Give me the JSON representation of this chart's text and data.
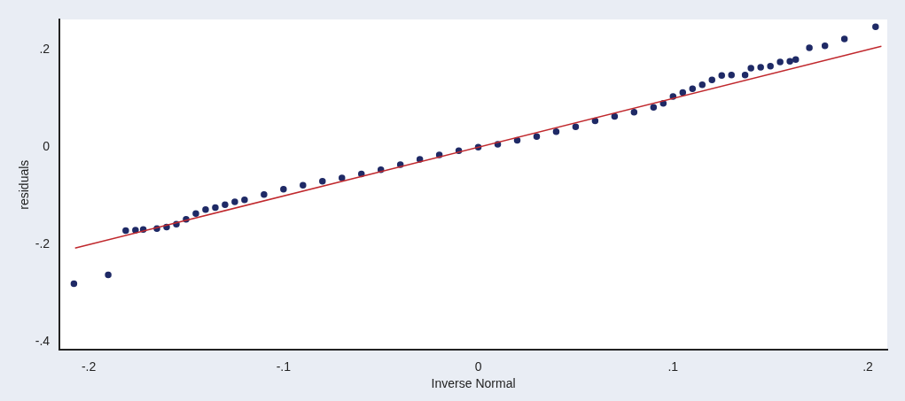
{
  "chart_data": {
    "type": "scatter",
    "xlabel": "Inverse Normal",
    "ylabel": "residuals",
    "xlim": [
      -0.215,
      0.21
    ],
    "ylim": [
      -0.416,
      0.262
    ],
    "xticks": [
      {
        "value": -0.2,
        "label": "-.2"
      },
      {
        "value": -0.1,
        "label": "-.1"
      },
      {
        "value": 0,
        "label": "0"
      },
      {
        "value": 0.1,
        "label": ".1"
      },
      {
        "value": 0.2,
        "label": ".2"
      }
    ],
    "yticks": [
      {
        "value": -0.4,
        "label": "-.4"
      },
      {
        "value": -0.2,
        "label": "-.2"
      },
      {
        "value": 0,
        "label": "0"
      },
      {
        "value": 0.2,
        "label": ".2"
      }
    ],
    "grid": false,
    "legend": false,
    "marker": "circle",
    "series": [
      {
        "type": "scatter",
        "color": "#1f2a66",
        "x": [
          -0.2076,
          -0.19,
          -0.181,
          -0.176,
          -0.172,
          -0.165,
          -0.16,
          -0.155,
          -0.15,
          -0.145,
          -0.14,
          -0.135,
          -0.13,
          -0.125,
          -0.12,
          -0.11,
          -0.1,
          -0.09,
          -0.08,
          -0.07,
          -0.06,
          -0.05,
          -0.04,
          -0.03,
          -0.02,
          -0.01,
          0,
          0.01,
          0.02,
          0.03,
          0.04,
          0.05,
          0.06,
          0.07,
          0.08,
          0.09,
          0.095,
          0.1,
          0.105,
          0.11,
          0.115,
          0.12,
          0.125,
          0.13,
          0.137,
          0.14,
          0.145,
          0.15,
          0.155,
          0.16,
          0.163,
          0.17,
          0.178,
          0.188,
          0.204
        ],
        "values": [
          -0.28,
          -0.262,
          -0.171,
          -0.17,
          -0.169,
          -0.167,
          -0.164,
          -0.158,
          -0.148,
          -0.136,
          -0.128,
          -0.124,
          -0.118,
          -0.112,
          -0.108,
          -0.097,
          -0.086,
          -0.078,
          -0.07,
          -0.063,
          -0.055,
          -0.046,
          -0.036,
          -0.025,
          -0.016,
          -0.007,
          0,
          0.006,
          0.014,
          0.022,
          0.032,
          0.042,
          0.054,
          0.063,
          0.072,
          0.082,
          0.09,
          0.104,
          0.112,
          0.12,
          0.128,
          0.138,
          0.147,
          0.148,
          0.148,
          0.162,
          0.164,
          0.166,
          0.175,
          0.176,
          0.18,
          0.204,
          0.208,
          0.222,
          0.247
        ]
      },
      {
        "type": "line",
        "color": "#c0282d",
        "line_style": "solid",
        "marker": "none",
        "x": [
          -0.207,
          0.207
        ],
        "values": [
          -0.207,
          0.207
        ]
      }
    ]
  }
}
